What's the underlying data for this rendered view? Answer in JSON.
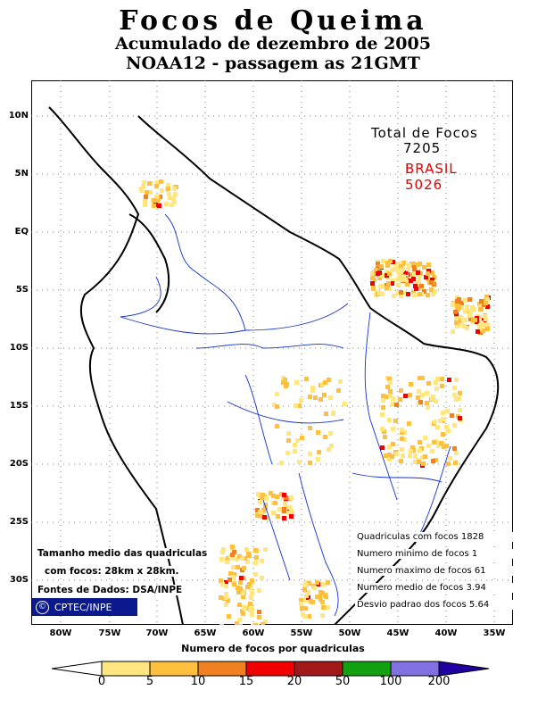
{
  "title": {
    "line1": "Focos de Queima",
    "line2": "Acumulado de dezembro de 2005",
    "line3": "NOAA12 - passagem as 21GMT"
  },
  "totals": {
    "label": "Total de Focos",
    "value": "7205",
    "brasil_label": "BRASIL",
    "brasil_value": "5026"
  },
  "stats": [
    "Quadriculas com focos 1828",
    "Numero minimo de focos 1",
    "Numero maximo de focos 61",
    "Numero medio de focos 3.94",
    "Desvio padrao dos focos 5.64"
  ],
  "notes": [
    "Tamanho medio das quadriculas",
    "com focos: 28km x 28km.",
    "Fontes de Dados: DSA/INPE"
  ],
  "credit": {
    "symbol": "©",
    "text": "CPTEC/INPE"
  },
  "axes": {
    "lat_labels": [
      "10N",
      "5N",
      "EQ",
      "5S",
      "10S",
      "15S",
      "20S",
      "25S",
      "30S"
    ],
    "lon_labels": [
      "80W",
      "75W",
      "70W",
      "65W",
      "60W",
      "55W",
      "50W",
      "45W",
      "40W",
      "35W"
    ],
    "xlabel": "Numero de focos por quadriculas"
  },
  "colorbar": {
    "labels": [
      "0",
      "5",
      "10",
      "15",
      "20",
      "50",
      "100",
      "200"
    ],
    "colors": [
      "#ffe680",
      "#ffc040",
      "#f08020",
      "#f00000",
      "#a01818",
      "#10a010",
      "#8070e0",
      "#2000a0"
    ]
  },
  "colors": {
    "coast": "#000000",
    "rivers": "#1030d0",
    "grid": "#808080"
  }
}
